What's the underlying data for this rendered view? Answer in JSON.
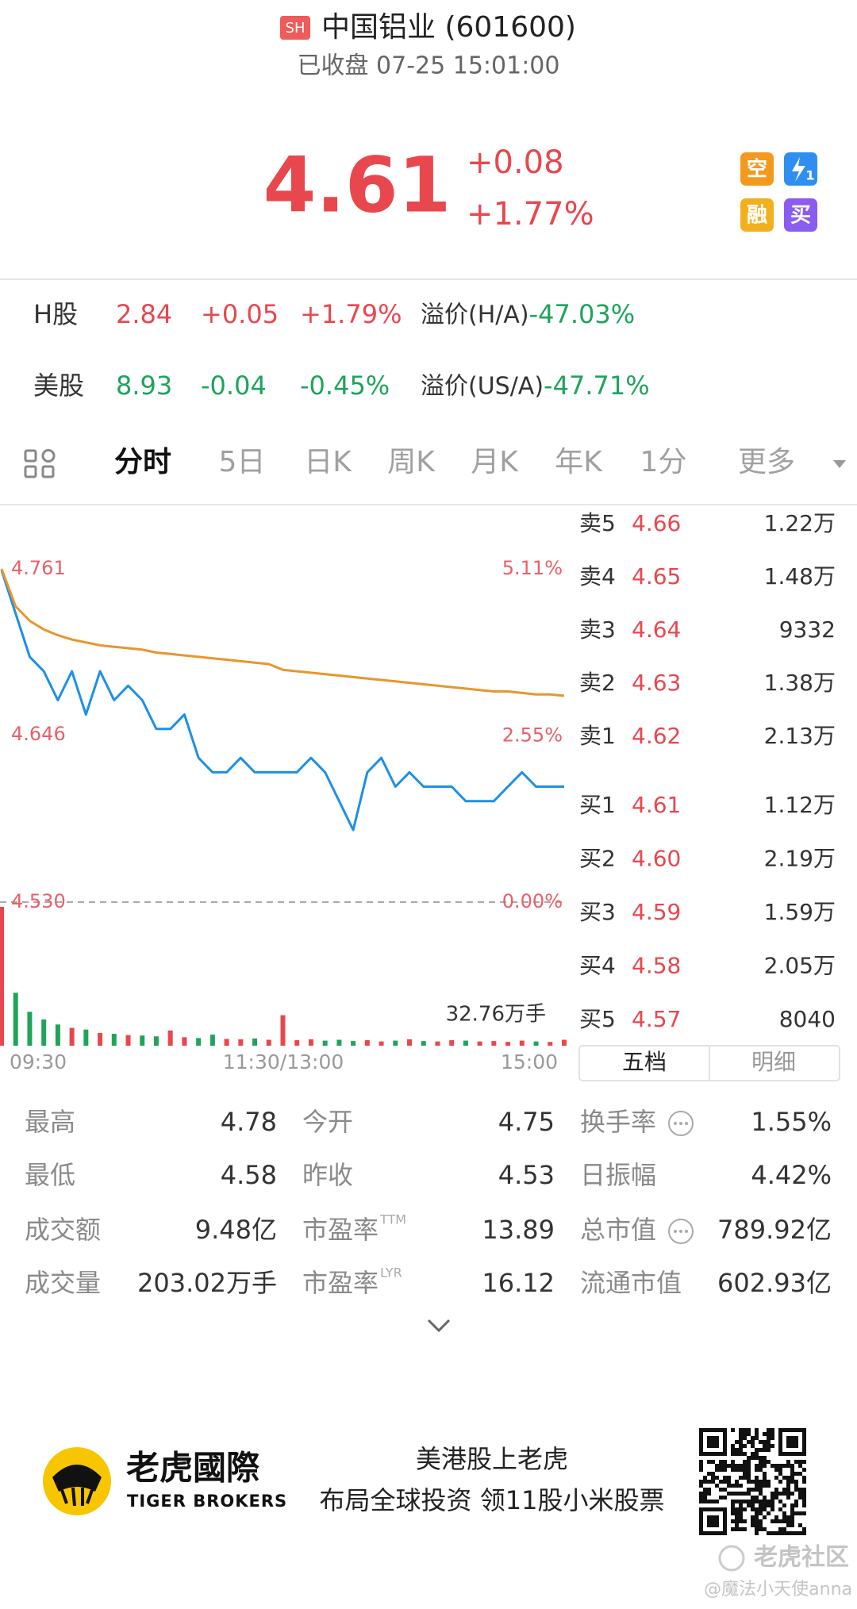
{
  "header": {
    "badge": "SH",
    "title": "中国铝业 (601600)",
    "status": "已收盘 07-25 15:01:00"
  },
  "quote": {
    "price": "4.61",
    "change": "+0.08",
    "change_pct": "+1.77%",
    "icons": [
      "空",
      "1",
      "融",
      "买"
    ]
  },
  "related": [
    {
      "market": "H股",
      "price": "2.84",
      "change": "+0.05",
      "change_pct": "+1.79%",
      "premium_label": "溢价(H/A)",
      "premium": "-47.03%"
    },
    {
      "market": "美股",
      "price": "8.93",
      "change": "-0.04",
      "change_pct": "-0.45%",
      "premium_label": "溢价(US/A)",
      "premium": "-47.71%"
    }
  ],
  "tabs": [
    "分时",
    "5日",
    "日K",
    "周K",
    "月K",
    "年K",
    "1分",
    "更多"
  ],
  "intraday": {
    "type": "line",
    "series": [
      {
        "color": "#1e8fe6",
        "values": [
          4.76,
          4.73,
          4.7,
          4.69,
          4.67,
          4.69,
          4.66,
          4.69,
          4.67,
          4.68,
          4.67,
          4.65,
          4.65,
          4.66,
          4.63,
          4.62,
          4.62,
          4.63,
          4.62,
          4.62,
          4.62,
          4.62,
          4.63,
          4.62,
          4.6,
          4.58,
          4.62,
          4.63,
          4.61,
          4.62,
          4.61,
          4.61,
          4.61,
          4.6,
          4.6,
          4.6,
          4.61,
          4.62,
          4.61,
          4.61,
          4.61
        ]
      },
      {
        "color": "#e8962e",
        "values": [
          4.761,
          4.735,
          4.725,
          4.719,
          4.715,
          4.712,
          4.71,
          4.708,
          4.707,
          4.706,
          4.705,
          4.703,
          4.702,
          4.701,
          4.7,
          4.699,
          4.698,
          4.697,
          4.696,
          4.695,
          4.691,
          4.69,
          4.689,
          4.688,
          4.687,
          4.686,
          4.685,
          4.684,
          4.683,
          4.682,
          4.681,
          4.68,
          4.679,
          4.678,
          4.677,
          4.676,
          4.676,
          4.675,
          4.674,
          4.674,
          4.673
        ]
      }
    ],
    "ylim": [
      4.53,
      4.761
    ],
    "yticks": [
      4.761,
      4.646,
      {
        "value": 4.53,
        "label": "4.530"
      }
    ],
    "y2lim": [
      0,
      5.11
    ],
    "y2ticks": [
      {
        "value": 5.11,
        "label": "5.11%"
      },
      {
        "value": 2.55,
        "label": "2.55%"
      },
      {
        "value": 0,
        "label": "0.00%"
      }
    ],
    "xticks": [
      "09:30",
      "11:30/13:00",
      "15:00"
    ],
    "volume": {
      "values": [
        32.76,
        12.5,
        8.0,
        6.2,
        5.0,
        4.2,
        3.8,
        3.0,
        2.8,
        2.5,
        2.4,
        2.2,
        3.6,
        2.0,
        1.8,
        2.6,
        1.6,
        1.5,
        1.7,
        1.4,
        7.2,
        1.3,
        1.5,
        1.2,
        1.4,
        1.1,
        1.3,
        1.0,
        1.2,
        1.5,
        1.1,
        1.0,
        1.3,
        1.2,
        1.0,
        1.1,
        0.9,
        1.2,
        1.0,
        0.9,
        1.4
      ],
      "vlim": [
        0,
        32.76
      ],
      "max_label": "32.76万手",
      "up_color": "#e8474e",
      "down_color": "#20a35a"
    }
  },
  "order_book": {
    "asks": [
      {
        "label": "卖5",
        "price": "4.66",
        "volume": "1.22万"
      },
      {
        "label": "卖4",
        "price": "4.65",
        "volume": "1.48万"
      },
      {
        "label": "卖3",
        "price": "4.64",
        "volume": "9332"
      },
      {
        "label": "卖2",
        "price": "4.63",
        "volume": "1.38万"
      },
      {
        "label": "卖1",
        "price": "4.62",
        "volume": "2.13万"
      }
    ],
    "bids": [
      {
        "label": "买1",
        "price": "4.61",
        "volume": "1.12万"
      },
      {
        "label": "买2",
        "price": "4.60",
        "volume": "2.19万"
      },
      {
        "label": "买3",
        "price": "4.59",
        "volume": "1.59万"
      },
      {
        "label": "买4",
        "price": "4.58",
        "volume": "2.05万"
      },
      {
        "label": "买5",
        "price": "4.57",
        "volume": "8040"
      }
    ],
    "tabs": [
      "五档",
      "明细"
    ]
  },
  "stats": [
    [
      {
        "label": "最高",
        "value": "4.78"
      },
      {
        "label": "今开",
        "value": "4.75"
      },
      {
        "label": "换手率",
        "value": "1.55%"
      }
    ],
    [
      {
        "label": "最低",
        "value": "4.58"
      },
      {
        "label": "昨收",
        "value": "4.53"
      },
      {
        "label": "日振幅",
        "value": "4.42%"
      }
    ],
    [
      {
        "label": "成交额",
        "value": "9.48亿"
      },
      {
        "label": "市盈率",
        "sup": "TTM",
        "value": "13.89"
      },
      {
        "label": "总市值",
        "value": "789.92亿"
      }
    ],
    [
      {
        "label": "成交量",
        "value": "203.02万手"
      },
      {
        "label": "市盈率",
        "sup": "LYR",
        "value": "16.12"
      },
      {
        "label": "流通市值",
        "value": "602.93亿"
      }
    ]
  ],
  "footer": {
    "brand": "老虎國際",
    "brand_en": "TIGER BROKERS",
    "slogan": "美港股上老虎",
    "slogan2": "布局全球投资 领11股小米股票",
    "watermark": "老虎社区",
    "user": "@魔法小天使anna"
  }
}
